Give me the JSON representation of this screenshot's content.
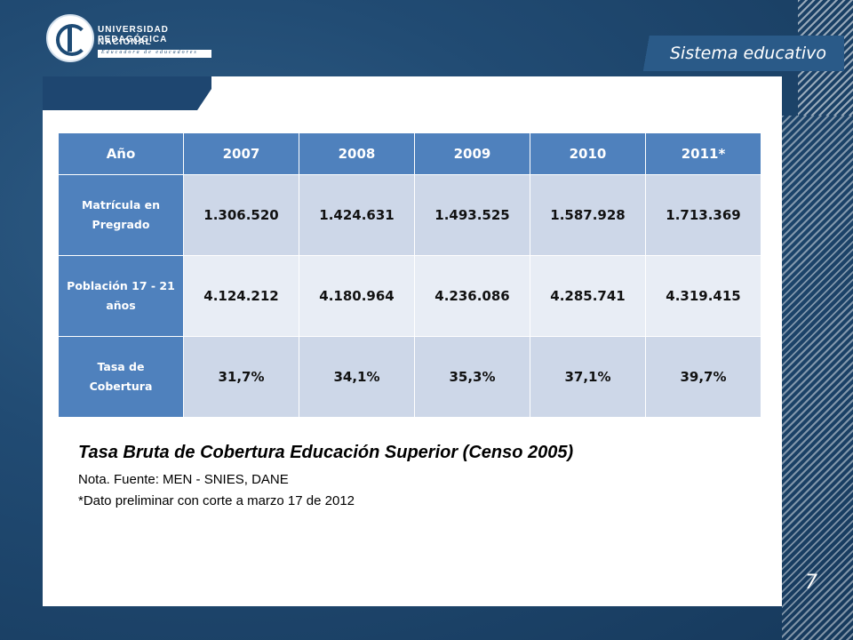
{
  "header": {
    "logo_line1": "UNIVERSIDAD PEDAGÓGICA",
    "logo_line2": "NACIONAL",
    "logo_tagline": "Educadora de educadores",
    "section_title": "Sistema educativo"
  },
  "table": {
    "columns": [
      "Año",
      "2007",
      "2008",
      "2009",
      "2010",
      "2011*"
    ],
    "rows": [
      {
        "label": "Matrícula en Pregrado",
        "values": [
          "1.306.520",
          "1.424.631",
          "1.493.525",
          "1.587.928",
          "1.713.369"
        ]
      },
      {
        "label": "Población 17 - 21 años",
        "values": [
          "4.124.212",
          "4.180.964",
          "4.236.086",
          "4.285.741",
          "4.319.415"
        ]
      },
      {
        "label": "Tasa de Cobertura",
        "values": [
          "31,7%",
          "34,1%",
          "35,3%",
          "37,1%",
          "39,7%"
        ]
      }
    ]
  },
  "caption": "Tasa Bruta de Cobertura Educación Superior (Censo 2005)",
  "note1": "Nota. Fuente: MEN - SNIES, DANE",
  "note2": "*Dato preliminar con corte a marzo 17 de 2012",
  "page_number": "7",
  "colors": {
    "header_cell": "#4f81bd",
    "row_odd": "#cdd7e8",
    "row_even": "#e8edf5",
    "background": "#1a3f63"
  }
}
